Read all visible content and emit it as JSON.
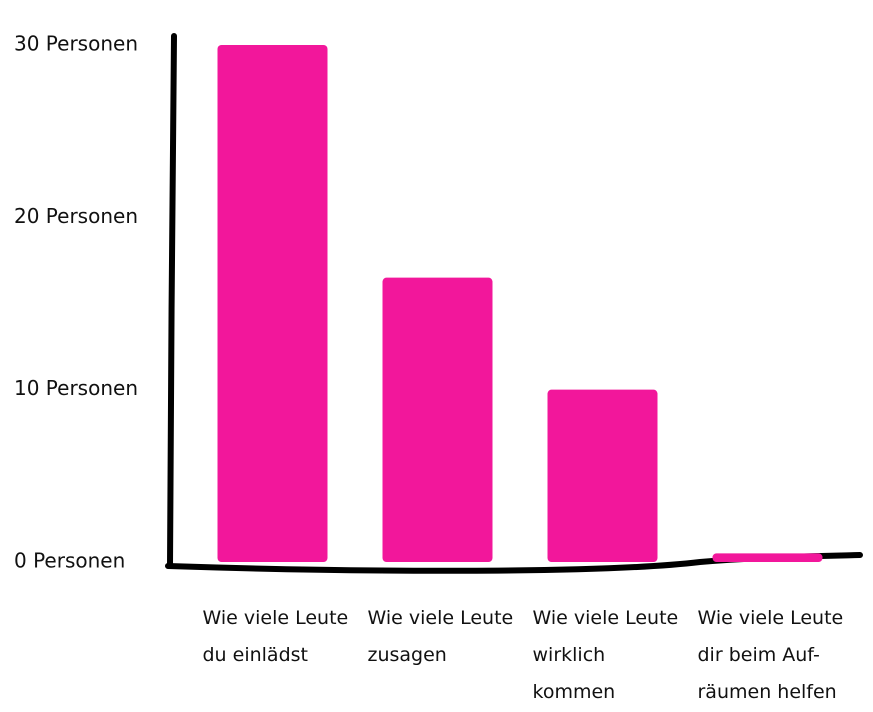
{
  "chart_data": {
    "type": "bar",
    "categories": [
      "Wie viele Leute\ndu einlädst",
      "Wie viele Leute\nzusagen",
      "Wie viele Leute\nwirklich kommen",
      "Wie viele Leute\ndir beim Auf-\nräumen helfen"
    ],
    "values": [
      30,
      16.5,
      10,
      0.5
    ],
    "color": "#f2179b",
    "ylim": [
      0,
      30
    ],
    "yticks": [
      {
        "value": 0,
        "label": "0 Personen"
      },
      {
        "value": 10,
        "label": "10 Personen"
      },
      {
        "value": 20,
        "label": "20 Personen"
      },
      {
        "value": 30,
        "label": "30 Personen"
      }
    ],
    "grid": false
  }
}
